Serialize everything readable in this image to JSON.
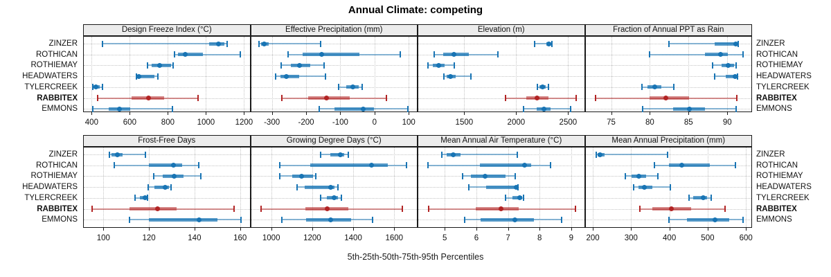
{
  "title": "Annual Climate: competing",
  "caption": "5th-25th-50th-75th-95th Percentiles",
  "sites": [
    "ZINZER",
    "ROTHICAN",
    "ROTHIEMAY",
    "HEADWATERS",
    "TYLERCREEK",
    "RABBITEX",
    "EMMONS"
  ],
  "highlight_site": "RABBITEX",
  "percentile_labels": [
    "5th",
    "25th",
    "50th",
    "75th",
    "95th"
  ],
  "colors": {
    "series_blue": "#1874b4",
    "series_blue_light": "rgba(24,116,180,0.5)",
    "series_blue_band": "rgba(24,116,180,0.72)",
    "highlight_red": "#b22424",
    "highlight_red_light": "rgba(178,36,36,0.5)",
    "highlight_red_band": "rgba(178,36,36,0.55)",
    "strip_bg": "#ececec",
    "grid": "#c3c3c3",
    "border": "#1a1a1a"
  },
  "chart_data": [
    {
      "type": "interval-dotplot",
      "title": "Design Freeze Index (°C)",
      "row": 0,
      "col": 0,
      "xlim": [
        355,
        1233
      ],
      "ticks": [
        400,
        600,
        800,
        1000,
        1200
      ],
      "tick_labels": [
        "400",
        "600",
        "800",
        "1000",
        "1200"
      ],
      "series": [
        {
          "site": "ZINZER",
          "percentiles": [
            455,
            1015,
            1067,
            1095,
            1111
          ]
        },
        {
          "site": "ROTHICAN",
          "percentiles": [
            835,
            852,
            891,
            985,
            1180
          ]
        },
        {
          "site": "ROTHIEMAY",
          "percentiles": [
            692,
            715,
            755,
            818,
            826
          ]
        },
        {
          "site": "HEADWATERS",
          "percentiles": [
            634,
            641,
            648,
            730,
            748
          ]
        },
        {
          "site": "TYLERCREEK",
          "percentiles": [
            407,
            410,
            422,
            441,
            456
          ]
        },
        {
          "site": "RABBITEX",
          "percentiles": [
            430,
            610,
            700,
            780,
            958
          ]
        },
        {
          "site": "EMMONS",
          "percentiles": [
            407,
            489,
            547,
            604,
            825
          ]
        }
      ]
    },
    {
      "type": "interval-dotplot",
      "title": "Effective Precipitation (mm)",
      "row": 0,
      "col": 1,
      "xlim": [
        -363,
        126
      ],
      "ticks": [
        -300,
        -200,
        -100,
        0,
        100
      ],
      "tick_labels": [
        "-300",
        "-200",
        "-100",
        "0",
        "100"
      ],
      "series": [
        {
          "site": "ZINZER",
          "percentiles": [
            -338,
            -331,
            -323,
            -310,
            -157
          ]
        },
        {
          "site": "ROTHICAN",
          "percentiles": [
            -253,
            -211,
            -155,
            -45,
            75
          ]
        },
        {
          "site": "ROTHIEMAY",
          "percentiles": [
            -272,
            -245,
            -219,
            -187,
            -148
          ]
        },
        {
          "site": "HEADWATERS",
          "percentiles": [
            -290,
            -275,
            -258,
            -221,
            -143
          ]
        },
        {
          "site": "TYLERCREEK",
          "percentiles": [
            -104,
            -83,
            -63,
            -46,
            -35
          ]
        },
        {
          "site": "RABBITEX",
          "percentiles": [
            -270,
            -194,
            -141,
            -73,
            35
          ]
        },
        {
          "site": "EMMONS",
          "percentiles": [
            -161,
            -117,
            -32,
            -2,
            97
          ]
        }
      ]
    },
    {
      "type": "interval-dotplot",
      "title": "Elevation (m)",
      "row": 0,
      "col": 2,
      "xlim": [
        1051,
        2661
      ],
      "ticks": [
        1500,
        2000,
        2500
      ],
      "tick_labels": [
        "1500",
        "2000",
        "2500"
      ],
      "series": [
        {
          "site": "ZINZER",
          "percentiles": [
            2180,
            2290,
            2316,
            2335,
            2345
          ]
        },
        {
          "site": "ROTHICAN",
          "percentiles": [
            1210,
            1300,
            1404,
            1545,
            1825
          ]
        },
        {
          "site": "ROTHIEMAY",
          "percentiles": [
            1153,
            1198,
            1251,
            1310,
            1404
          ]
        },
        {
          "site": "HEADWATERS",
          "percentiles": [
            1307,
            1331,
            1367,
            1420,
            1567
          ]
        },
        {
          "site": "TYLERCREEK",
          "percentiles": [
            2204,
            2227,
            2253,
            2282,
            2313
          ]
        },
        {
          "site": "RABBITEX",
          "percentiles": [
            1898,
            2098,
            2198,
            2310,
            2580
          ]
        },
        {
          "site": "EMMONS",
          "percentiles": [
            2071,
            2198,
            2269,
            2331,
            2524
          ]
        }
      ]
    },
    {
      "type": "interval-dotplot",
      "title": "Fraction of Annual PPT as Rain",
      "row": 0,
      "col": 3,
      "xlim": [
        71.6,
        93.2
      ],
      "ticks": [
        75,
        80,
        85,
        90
      ],
      "tick_labels": [
        "75",
        "80",
        "85",
        "90"
      ],
      "series": [
        {
          "site": "ZINZER",
          "percentiles": [
            82.5,
            88.4,
            91.1,
            91.2,
            91.4
          ]
        },
        {
          "site": "ROTHICAN",
          "percentiles": [
            80.0,
            87.1,
            89.1,
            90.1,
            92.0
          ]
        },
        {
          "site": "ROTHIEMAY",
          "percentiles": [
            88.1,
            89.3,
            90.1,
            90.9,
            91.1
          ]
        },
        {
          "site": "HEADWATERS",
          "percentiles": [
            88.4,
            89.8,
            91.0,
            91.2,
            91.3
          ]
        },
        {
          "site": "TYLERCREEK",
          "percentiles": [
            79.0,
            79.7,
            80.6,
            81.5,
            83.1
          ]
        },
        {
          "site": "RABBITEX",
          "percentiles": [
            73.0,
            80.0,
            82.1,
            85.1,
            91.2
          ]
        },
        {
          "site": "EMMONS",
          "percentiles": [
            79.1,
            83.0,
            85.1,
            87.1,
            91.1
          ]
        }
      ]
    },
    {
      "type": "interval-dotplot",
      "title": "Frost-Free Days",
      "row": 1,
      "col": 0,
      "xlim": [
        91.1,
        164.5
      ],
      "ticks": [
        100,
        120,
        140,
        160
      ],
      "tick_labels": [
        "100",
        "120",
        "140",
        "160"
      ],
      "series": [
        {
          "site": "ZINZER",
          "percentiles": [
            102.5,
            103.7,
            106.0,
            108.3,
            118.4
          ]
        },
        {
          "site": "ROTHICAN",
          "percentiles": [
            104.9,
            120.0,
            130.9,
            134.6,
            141.9
          ]
        },
        {
          "site": "ROTHIEMAY",
          "percentiles": [
            122.2,
            126.0,
            131.1,
            135.1,
            142.7
          ]
        },
        {
          "site": "HEADWATERS",
          "percentiles": [
            119.7,
            122.5,
            127.2,
            128.8,
            129.6
          ]
        },
        {
          "site": "TYLERCREEK",
          "percentiles": [
            113.9,
            115.9,
            118.4,
            119.1,
            119.4
          ]
        },
        {
          "site": "RABBITEX",
          "percentiles": [
            95.1,
            111.4,
            123.8,
            132.1,
            157.4
          ]
        },
        {
          "site": "EMMONS",
          "percentiles": [
            111.5,
            120.0,
            142.0,
            150.0,
            160.3
          ]
        }
      ]
    },
    {
      "type": "interval-dotplot",
      "title": "Growing Degree Days (°C)",
      "row": 1,
      "col": 1,
      "xlim": [
        898,
        1714
      ],
      "ticks": [
        1000,
        1200,
        1400,
        1600
      ],
      "tick_labels": [
        "1000",
        "1200",
        "1400",
        "1600"
      ],
      "series": [
        {
          "site": "ZINZER",
          "percentiles": [
            1240,
            1287,
            1338,
            1355,
            1375
          ]
        },
        {
          "site": "ROTHICAN",
          "percentiles": [
            1042,
            1190,
            1490,
            1570,
            1660
          ]
        },
        {
          "site": "ROTHIEMAY",
          "percentiles": [
            1043,
            1101,
            1149,
            1203,
            1218
          ]
        },
        {
          "site": "HEADWATERS",
          "percentiles": [
            1126,
            1163,
            1290,
            1310,
            1327
          ]
        },
        {
          "site": "TYLERCREEK",
          "percentiles": [
            1242,
            1270,
            1306,
            1327,
            1341
          ]
        },
        {
          "site": "RABBITEX",
          "percentiles": [
            949,
            1167,
            1273,
            1377,
            1639
          ]
        },
        {
          "site": "EMMONS",
          "percentiles": [
            1051,
            1171,
            1290,
            1389,
            1495
          ]
        }
      ]
    },
    {
      "type": "interval-dotplot",
      "title": "Mean Annual Air Temperature (°C)",
      "row": 1,
      "col": 2,
      "xlim": [
        4.14,
        9.43
      ],
      "ticks": [
        5,
        6,
        7,
        8,
        9
      ],
      "tick_labels": [
        "5",
        "6",
        "7",
        "8",
        "9"
      ],
      "series": [
        {
          "site": "ZINZER",
          "percentiles": [
            4.9,
            5.06,
            5.26,
            5.5,
            7.29
          ]
        },
        {
          "site": "ROTHICAN",
          "percentiles": [
            4.47,
            6.12,
            7.52,
            7.73,
            8.34
          ]
        },
        {
          "site": "ROTHIEMAY",
          "percentiles": [
            5.57,
            5.83,
            6.27,
            6.92,
            7.22
          ]
        },
        {
          "site": "HEADWATERS",
          "percentiles": [
            5.77,
            6.3,
            7.27,
            7.3,
            7.31
          ]
        },
        {
          "site": "TYLERCREEK",
          "percentiles": [
            6.92,
            7.14,
            7.38,
            7.44,
            7.49
          ]
        },
        {
          "site": "RABBITEX",
          "percentiles": [
            4.49,
            5.99,
            6.79,
            7.34,
            9.13
          ]
        },
        {
          "site": "EMMONS",
          "percentiles": [
            5.64,
            6.13,
            7.22,
            7.82,
            8.69
          ]
        }
      ]
    },
    {
      "type": "interval-dotplot",
      "title": "Mean Annual Precipitation (mm)",
      "row": 1,
      "col": 3,
      "xlim": [
        179,
        616
      ],
      "ticks": [
        200,
        300,
        400,
        500,
        600
      ],
      "tick_labels": [
        "200",
        "300",
        "400",
        "500",
        "600"
      ],
      "series": [
        {
          "site": "ZINZER",
          "percentiles": [
            208,
            212,
            219,
            231,
            396
          ]
        },
        {
          "site": "ROTHICAN",
          "percentiles": [
            360,
            398,
            432,
            505,
            572
          ]
        },
        {
          "site": "ROTHIEMAY",
          "percentiles": [
            284,
            301,
            320,
            340,
            369
          ]
        },
        {
          "site": "HEADWATERS",
          "percentiles": [
            307,
            319,
            334,
            355,
            402
          ]
        },
        {
          "site": "TYLERCREEK",
          "percentiles": [
            452,
            463,
            489,
            499,
            510
          ]
        },
        {
          "site": "RABBITEX",
          "percentiles": [
            323,
            355,
            405,
            457,
            545
          ]
        },
        {
          "site": "EMMONS",
          "percentiles": [
            398,
            445,
            520,
            556,
            592
          ]
        }
      ]
    }
  ]
}
